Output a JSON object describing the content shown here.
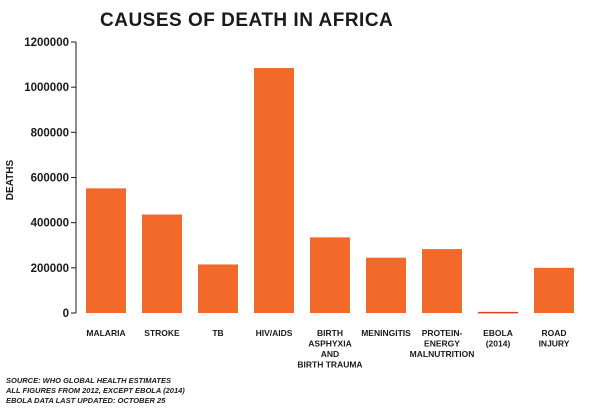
{
  "chart_data": {
    "type": "bar",
    "title": "CAUSES OF DEATH IN AFRICA",
    "ylabel": "DEATHS",
    "xlabel": "",
    "ylim": [
      0,
      1200000
    ],
    "yticks": [
      "0",
      "200000",
      "400000",
      "600000",
      "800000",
      "1000000",
      "1200000"
    ],
    "ytick_values": [
      0,
      200000,
      400000,
      600000,
      800000,
      1000000,
      1200000
    ],
    "categories": [
      [
        "MALARIA"
      ],
      [
        "STROKE"
      ],
      [
        "TB"
      ],
      [
        "HIV/AIDS"
      ],
      [
        "BIRTH",
        "ASPHYXIA",
        "AND",
        "BIRTH TRAUMA"
      ],
      [
        "MENINGITIS"
      ],
      [
        "PROTEIN-",
        "ENERGY",
        "MALNUTRITION"
      ],
      [
        "EBOLA",
        "(2014)"
      ],
      [
        "ROAD",
        "INJURY"
      ]
    ],
    "values": [
      552000,
      436000,
      215000,
      1085000,
      335000,
      245000,
      283000,
      5000,
      200000
    ],
    "bar_colors": [
      "#f26a2a",
      "#f26a2a",
      "#f26a2a",
      "#f26a2a",
      "#f26a2a",
      "#f26a2a",
      "#f26a2a",
      "#e23a25",
      "#f26a2a"
    ],
    "grid": false,
    "legend": "none"
  },
  "source": [
    "SOURCE: WHO GLOBAL HEALTH ESTIMATES",
    "ALL FIGURES FROM 2012, EXCEPT EBOLA (2014)",
    "EBOLA DATA LAST UPDATED: OCTOBER 25"
  ],
  "colors": {
    "bar": "#f26a2a",
    "ebola": "#e23a25",
    "axis": "#1a1a1a"
  }
}
